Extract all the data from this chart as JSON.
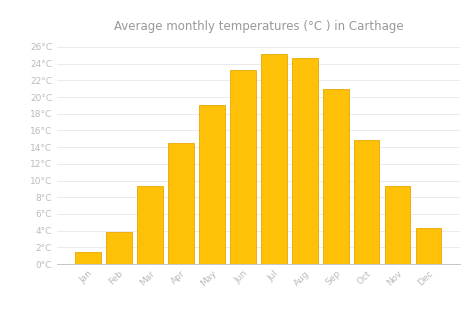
{
  "months": [
    "Jan",
    "Feb",
    "Mar",
    "Apr",
    "May",
    "Jun",
    "Jul",
    "Aug",
    "Sep",
    "Oct",
    "Nov",
    "Dec"
  ],
  "values": [
    1.5,
    3.8,
    9.3,
    14.5,
    19.0,
    23.2,
    25.2,
    24.7,
    21.0,
    14.8,
    9.4,
    4.3
  ],
  "bar_color": "#FFC107",
  "bar_edge_color": "#E6A800",
  "title": "Average monthly temperatures (°C ) in Carthage",
  "ylim": [
    0,
    27
  ],
  "yticks": [
    0,
    2,
    4,
    6,
    8,
    10,
    12,
    14,
    16,
    18,
    20,
    22,
    24,
    26
  ],
  "ytick_labels": [
    "0°C",
    "2°C",
    "4°C",
    "6°C",
    "8°C",
    "10°C",
    "12°C",
    "14°C",
    "16°C",
    "18°C",
    "20°C",
    "22°C",
    "24°C",
    "26°C"
  ],
  "background_color": "#ffffff",
  "grid_color": "#e8e8e8",
  "title_fontsize": 8.5,
  "tick_fontsize": 6.5,
  "title_color": "#999999",
  "tick_color": "#bbbbbb",
  "bar_width": 0.82
}
